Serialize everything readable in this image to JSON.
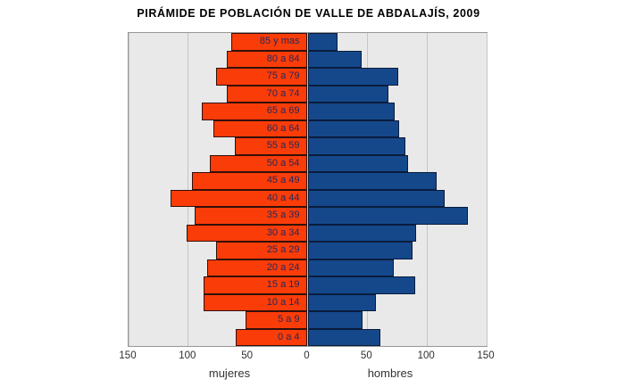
{
  "title": "PIRÁMIDE DE POBLACIÓN DE VALLE DE ABDALAJÍS, 2009",
  "colors": {
    "mujeres_bar": "#fa3c08",
    "hombres_bar": "#15488a",
    "plot_background": "#e9e9e9",
    "gridline": "#c6c6c6",
    "age_label_text": "#27285c"
  },
  "chart_data": {
    "type": "bar",
    "variant": "population_pyramid",
    "orientation": "horizontal",
    "title": "PIRÁMIDE DE POBLACIÓN DE VALLE DE ABDALAJÍS, 2009",
    "categories_top_to_bottom": [
      "85 y mas",
      "80 a 84",
      "75 a 79",
      "70 a 74",
      "65 a 69",
      "60 a 64",
      "55 a 59",
      "50 a 54",
      "45 a 49",
      "40 a 44",
      "35 a 39",
      "30 a 34",
      "25 a 29",
      "20 a 24",
      "15 a 19",
      "10 a 14",
      "5 a 9",
      "0 a 4"
    ],
    "series": [
      {
        "name": "mujeres",
        "side": "left",
        "color": "#fa3c08",
        "values": [
          64,
          68,
          77,
          68,
          89,
          79,
          61,
          82,
          97,
          115,
          95,
          101,
          77,
          84,
          87,
          87,
          52,
          60
        ]
      },
      {
        "name": "hombres",
        "side": "right",
        "color": "#15488a",
        "values": [
          25,
          45,
          76,
          68,
          73,
          77,
          82,
          84,
          108,
          115,
          134,
          91,
          88,
          72,
          90,
          57,
          46,
          61
        ]
      }
    ],
    "x_axis": {
      "max_each_side": 150,
      "ticks": [
        -150,
        -100,
        -50,
        0,
        50,
        100,
        150
      ],
      "tick_labels": [
        "150",
        "100",
        "50",
        "0",
        "50",
        "100",
        "150"
      ],
      "left_caption": "mujeres",
      "right_caption": "hombres",
      "grid": true
    },
    "legend_position": "none"
  }
}
